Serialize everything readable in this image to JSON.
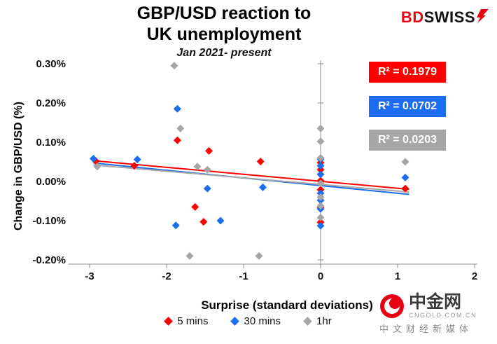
{
  "brand": {
    "bd": "BD",
    "swiss": "SWISS"
  },
  "watermark": {
    "name": "中金网",
    "url": "CNGOLD.COM.CN",
    "slogan": "中文财经新媒体"
  },
  "chart_data": {
    "type": "scatter",
    "title": "GBP/USD reaction to UK unemployment",
    "title_lines": [
      "GBP/USD reaction to",
      "UK unemployment"
    ],
    "subtitle": "Jan 2021- present",
    "xlabel": "Surprise (standard deviations)",
    "ylabel": "Change in GBP/USD  (%)",
    "xlim": [
      -3,
      2
    ],
    "ylim_pct": [
      -0.25,
      0.32
    ],
    "grid": false,
    "legend_position": "bottom",
    "x_ticks": [
      {
        "label": "-3",
        "value": -3
      },
      {
        "label": "-2",
        "value": -2
      },
      {
        "label": "-1",
        "value": -1
      },
      {
        "label": "0",
        "value": 0
      },
      {
        "label": "1",
        "value": 1
      },
      {
        "label": "2",
        "value": 2
      }
    ],
    "y_ticks": [
      {
        "label": "0.30%",
        "value": 0.3
      },
      {
        "label": "0.20%",
        "value": 0.2
      },
      {
        "label": "0.10%",
        "value": 0.1
      },
      {
        "label": "0.00%",
        "value": 0.0
      },
      {
        "label": "-0.10%",
        "value": -0.1
      },
      {
        "label": "-0.20%",
        "value": -0.2
      }
    ],
    "series": [
      {
        "name": "5 mins",
        "color": "#FF0000",
        "r2": 0.1979,
        "r2_label": "R² = 0.1979",
        "trend": [
          [
            -2.95,
            0.053
          ],
          [
            1.15,
            -0.02
          ]
        ],
        "points": [
          [
            -2.92,
            0.052
          ],
          [
            -2.42,
            0.04
          ],
          [
            -1.86,
            0.105
          ],
          [
            -1.45,
            0.078
          ],
          [
            -1.63,
            -0.065
          ],
          [
            -1.52,
            -0.103
          ],
          [
            -0.78,
            0.051
          ],
          [
            0,
            0.048
          ],
          [
            0,
            0.03
          ],
          [
            0,
            0.002
          ],
          [
            0,
            -0.021
          ],
          [
            0,
            -0.066
          ],
          [
            0,
            -0.104
          ],
          [
            1.1,
            -0.018
          ]
        ]
      },
      {
        "name": "30 mins",
        "color": "#1B6DF2",
        "r2": 0.0702,
        "r2_label": "R² = 0.0702",
        "trend": [
          [
            -2.95,
            0.047
          ],
          [
            1.15,
            -0.033
          ]
        ],
        "points": [
          [
            -2.95,
            0.058
          ],
          [
            -2.38,
            0.056
          ],
          [
            -1.86,
            0.185
          ],
          [
            -1.88,
            -0.112
          ],
          [
            -1.47,
            -0.018
          ],
          [
            -1.3,
            -0.1
          ],
          [
            -0.75,
            -0.015
          ],
          [
            0,
            0.057
          ],
          [
            0,
            0.04
          ],
          [
            0,
            0.018
          ],
          [
            0,
            -0.03
          ],
          [
            0,
            -0.048
          ],
          [
            0,
            -0.07
          ],
          [
            0,
            -0.113
          ],
          [
            1.1,
            0.01
          ]
        ]
      },
      {
        "name": "1hr",
        "color": "#A6A6A6",
        "r2": 0.0203,
        "r2_label": "R² = 0.0203",
        "trend": [
          [
            -2.95,
            0.042
          ],
          [
            1.15,
            -0.027
          ]
        ],
        "points": [
          [
            -2.9,
            0.038
          ],
          [
            -1.9,
            0.295
          ],
          [
            -1.82,
            0.135
          ],
          [
            -1.6,
            0.038
          ],
          [
            -1.47,
            0.03
          ],
          [
            -1.7,
            -0.19
          ],
          [
            -0.8,
            -0.19
          ],
          [
            0,
            0.135
          ],
          [
            0,
            0.102
          ],
          [
            0,
            0.06
          ],
          [
            0,
            -0.005
          ],
          [
            0,
            -0.04
          ],
          [
            0,
            -0.062
          ],
          [
            0,
            -0.092
          ],
          [
            1.1,
            0.05
          ]
        ]
      }
    ]
  }
}
